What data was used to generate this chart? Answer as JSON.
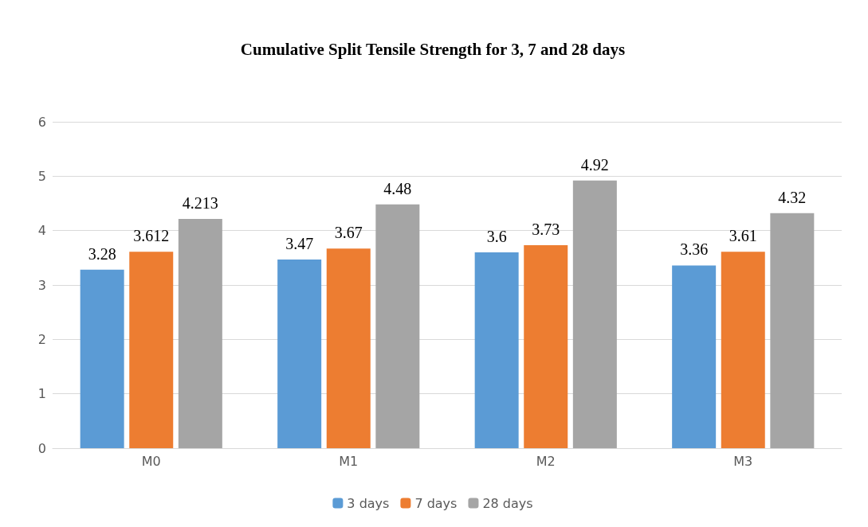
{
  "chart_data": {
    "type": "bar",
    "title": "Cumulative Split Tensile Strength for 3, 7 and 28 days",
    "categories": [
      "M0",
      "M1",
      "M2",
      "M3"
    ],
    "series": [
      {
        "name": "3 days",
        "color": "#5b9bd5",
        "values": [
          3.28,
          3.47,
          3.6,
          3.36
        ]
      },
      {
        "name": "7 days",
        "color": "#ed7d31",
        "values": [
          3.612,
          3.67,
          3.73,
          3.61
        ]
      },
      {
        "name": "28 days",
        "color": "#a5a5a5",
        "values": [
          4.213,
          4.48,
          4.92,
          4.32
        ]
      }
    ],
    "ylim": [
      0,
      6
    ],
    "yticks": [
      0,
      1,
      2,
      3,
      4,
      5,
      6
    ],
    "grid": "y",
    "legend": "bottom",
    "data_labels": true
  }
}
